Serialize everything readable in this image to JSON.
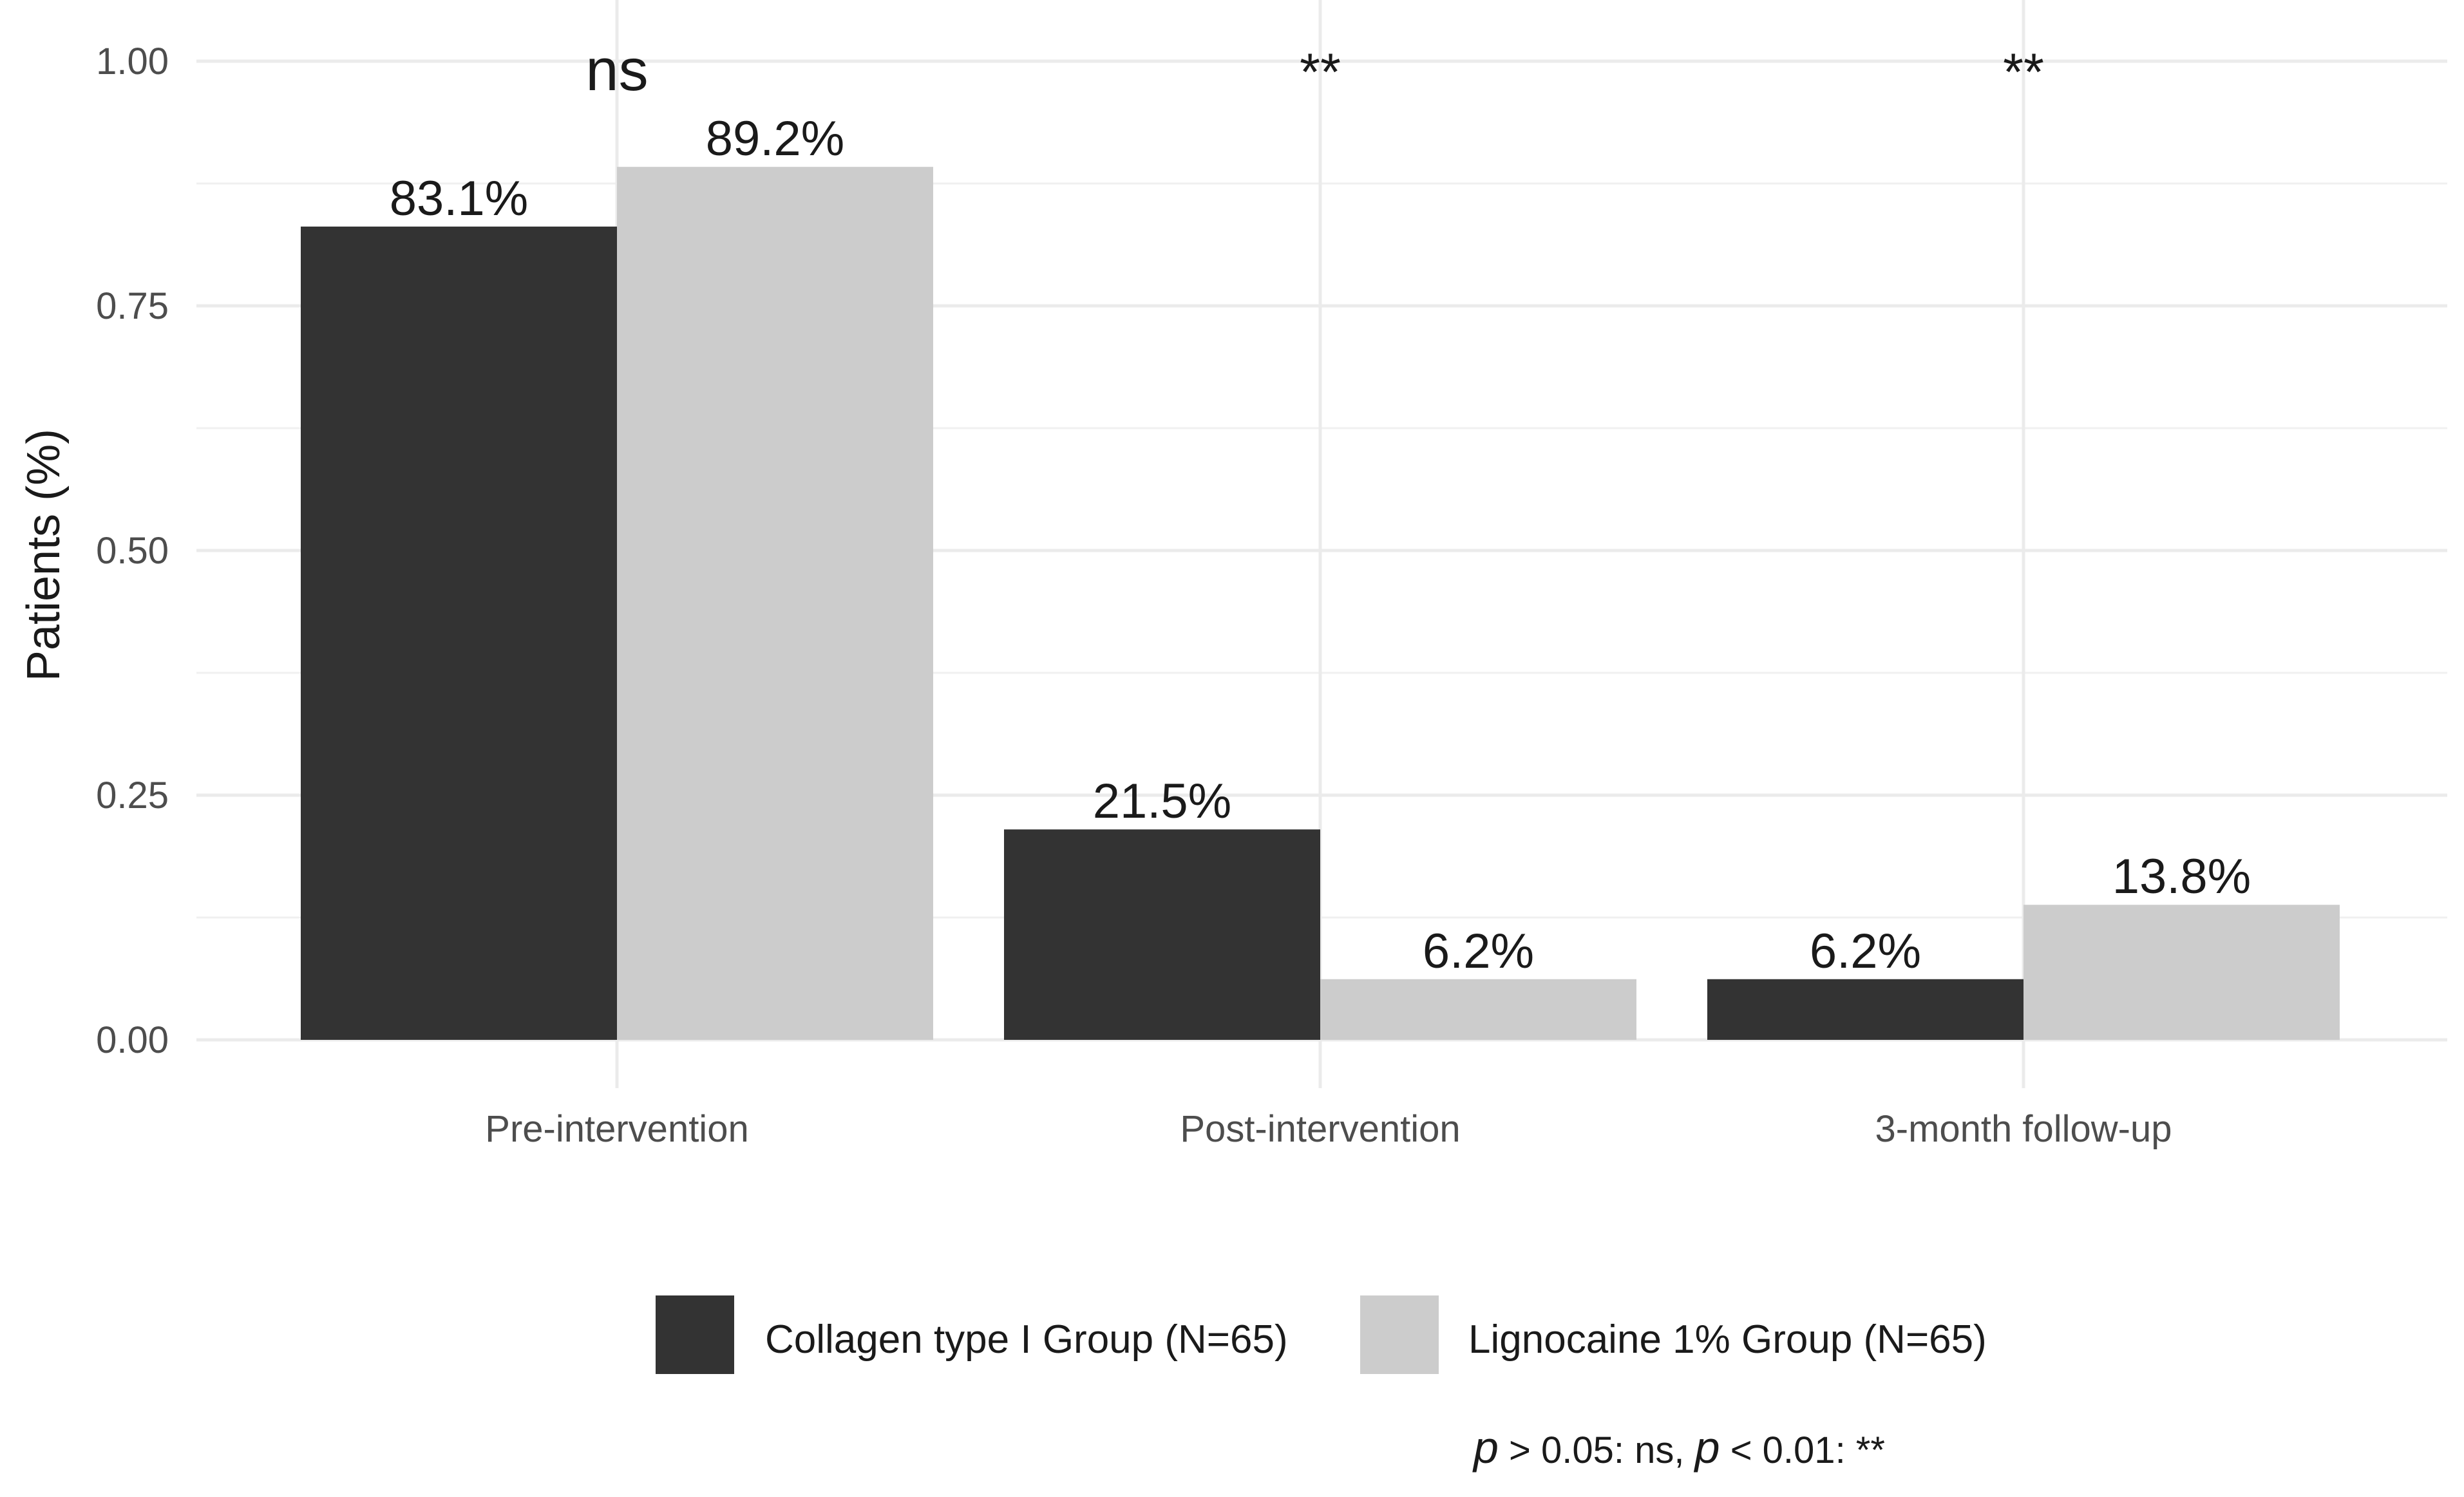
{
  "chart_data": {
    "type": "bar",
    "title": "",
    "xlabel": "",
    "ylabel": "Patients (%)",
    "ylim": [
      0,
      1
    ],
    "yticks": [
      "0.00",
      "0.25",
      "0.50",
      "0.75",
      "1.00"
    ],
    "grid": true,
    "legend_position": "bottom",
    "categories": [
      "Pre-intervention",
      "Post-intervention",
      "3-month follow-up"
    ],
    "series": [
      {
        "name": "Collagen type I Group (N=65)",
        "color": "#333333",
        "values": [
          0.831,
          0.215,
          0.062
        ],
        "labels": [
          "83.1%",
          "21.5%",
          "6.2%"
        ]
      },
      {
        "name": "Lignocaine 1% Group (N=65)",
        "color": "#cccccc",
        "values": [
          0.892,
          0.062,
          0.138
        ],
        "labels": [
          "89.2%",
          "6.2%",
          "13.8%"
        ]
      }
    ],
    "significance": [
      "ns",
      "**",
      "**"
    ],
    "note": {
      "p1": "p",
      "part1": " > 0.05: ns, ",
      "p2": "p",
      "part2": " < 0.01: **"
    }
  }
}
